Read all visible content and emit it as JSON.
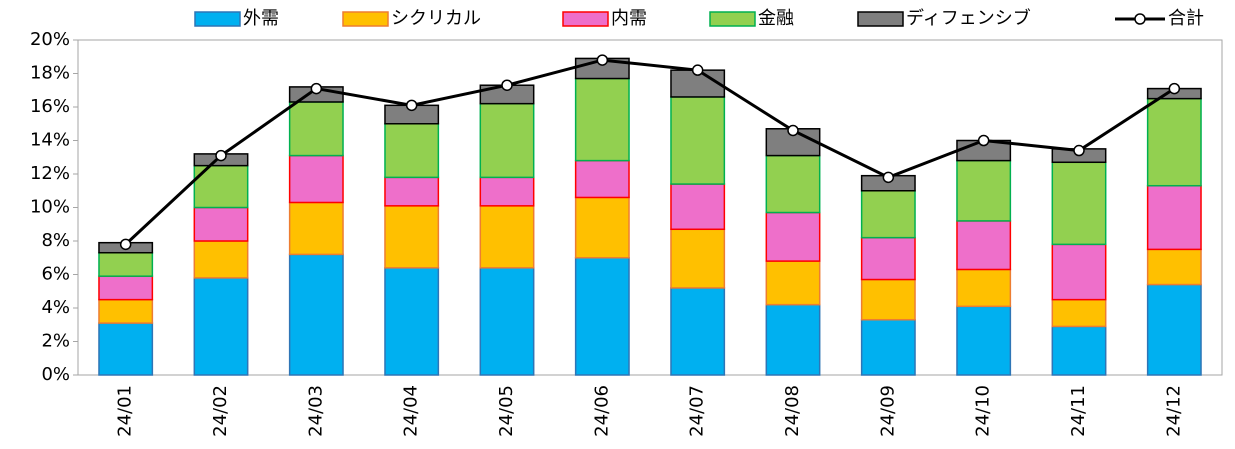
{
  "chart_data": {
    "type": "stacked_bar_line",
    "categories": [
      "24/01",
      "24/02",
      "24/03",
      "24/04",
      "24/05",
      "24/06",
      "24/07",
      "24/08",
      "24/09",
      "24/10",
      "24/11",
      "24/12"
    ],
    "series": [
      {
        "name": "外需",
        "color": "#00b0f0",
        "stroke": "#2e75b6",
        "values": [
          3.1,
          5.8,
          7.2,
          6.4,
          6.4,
          7.0,
          5.2,
          4.2,
          3.3,
          4.1,
          2.9,
          5.4
        ]
      },
      {
        "name": "シクリカル",
        "color": "#ffc000",
        "stroke": "#ed7d31",
        "values": [
          1.4,
          2.2,
          3.1,
          3.7,
          3.7,
          3.6,
          3.5,
          2.6,
          2.4,
          2.2,
          1.6,
          2.1
        ]
      },
      {
        "name": "内需",
        "color": "#ee6fca",
        "stroke": "#ff0000",
        "values": [
          1.4,
          2.0,
          2.8,
          1.7,
          1.7,
          2.2,
          2.7,
          2.9,
          2.5,
          2.9,
          3.3,
          3.8
        ]
      },
      {
        "name": "金融",
        "color": "#92d050",
        "stroke": "#00b050",
        "values": [
          1.4,
          2.5,
          3.2,
          3.2,
          4.4,
          4.9,
          5.2,
          3.4,
          2.8,
          3.6,
          4.9,
          5.2
        ]
      },
      {
        "name": "ディフェンシブ",
        "color": "#7f7f7f",
        "stroke": "#000000",
        "values": [
          0.6,
          0.7,
          0.9,
          1.1,
          1.1,
          1.2,
          1.6,
          1.6,
          0.9,
          1.2,
          0.8,
          0.6
        ]
      },
      {
        "name": "合計",
        "color": "#000000",
        "type": "line",
        "values": [
          7.8,
          13.1,
          17.1,
          16.1,
          17.3,
          18.8,
          18.2,
          14.6,
          11.8,
          14.0,
          13.4,
          17.1
        ]
      }
    ],
    "ylim": [
      0,
      20
    ],
    "yticks": [
      {
        "value": 0,
        "label": "0%"
      },
      {
        "value": 2,
        "label": "2%"
      },
      {
        "value": 4,
        "label": "4%"
      },
      {
        "value": 6,
        "label": "6%"
      },
      {
        "value": 8,
        "label": "8%"
      },
      {
        "value": 10,
        "label": "10%"
      },
      {
        "value": 12,
        "label": "12%"
      },
      {
        "value": 14,
        "label": "14%"
      },
      {
        "value": 16,
        "label": "16%"
      },
      {
        "value": 18,
        "label": "18%"
      },
      {
        "value": 20,
        "label": "20%"
      }
    ],
    "grid": false,
    "legend": "top"
  }
}
